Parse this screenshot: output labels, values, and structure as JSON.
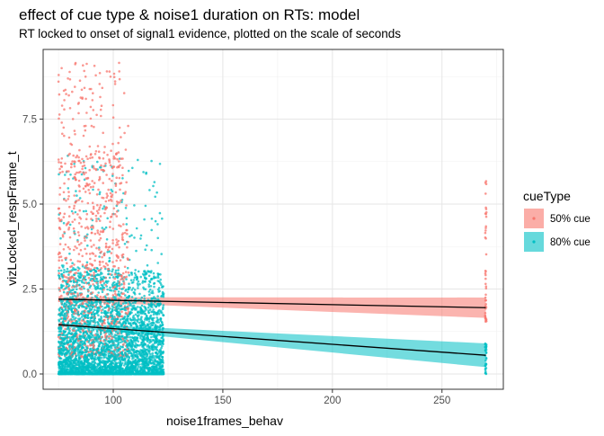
{
  "chart_data": {
    "type": "scatter",
    "title": "effect of cue type & noise1 duration on RTs: model",
    "subtitle": "RT locked to onset of signal1 evidence, plotted on the scale of seconds",
    "xlabel": "noise1frames_behav",
    "ylabel": "vizLocked_respFrame_t",
    "xlim": [
      68,
      278
    ],
    "ylim": [
      -0.45,
      9.55
    ],
    "x_ticks": [
      100,
      150,
      200,
      250
    ],
    "x_tick_labels": [
      "100",
      "150",
      "200",
      "250"
    ],
    "y_ticks": [
      0.0,
      2.5,
      5.0,
      7.5
    ],
    "y_tick_labels": [
      "0.0",
      "2.5",
      "5.0",
      "7.5"
    ],
    "grid": true,
    "legend_position": "right",
    "legend": {
      "title": "cueType",
      "entries": [
        {
          "label": "50% cue",
          "color": "#F8766D"
        },
        {
          "label": "80% cue",
          "color": "#00BFC4"
        }
      ]
    },
    "series": [
      {
        "name": "50% cue",
        "color": "#F8766D",
        "fit_line": {
          "x": [
            75,
            270
          ],
          "y": [
            2.2,
            1.95
          ]
        },
        "ci_band": {
          "x": [
            75,
            270
          ],
          "lower": [
            2.14,
            1.65
          ],
          "upper": [
            2.26,
            2.25
          ]
        },
        "points_summary": {
          "x_range_dense": [
            75,
            107
          ],
          "y_range_dense": [
            0.5,
            9.2
          ],
          "x_outlier_cluster": 270,
          "y_range_outlier_cluster": [
            1.5,
            6.0
          ]
        }
      },
      {
        "name": "80% cue",
        "color": "#00BFC4",
        "fit_line": {
          "x": [
            75,
            270
          ],
          "y": [
            1.45,
            0.55
          ]
        },
        "ci_band": {
          "x": [
            75,
            270
          ],
          "lower": [
            1.4,
            0.2
          ],
          "upper": [
            1.5,
            0.9
          ]
        },
        "points_summary": {
          "x_range_dense": [
            75,
            123
          ],
          "y_range_dense": [
            0.0,
            7.5
          ],
          "x_outlier_cluster": 270,
          "y_range_outlier_cluster": [
            0.0,
            0.9
          ]
        }
      }
    ]
  }
}
